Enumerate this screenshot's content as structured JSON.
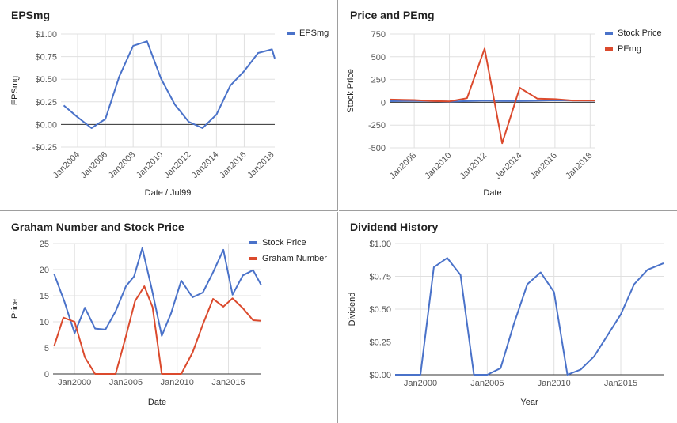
{
  "colors": {
    "blue": "#4a72c9",
    "red": "#db4a2d",
    "grid": "#e0e0e0",
    "axis": "#333333"
  },
  "chart_data": [
    {
      "type": "line",
      "title": "EPSmg",
      "xlabel": "Date / Jul99",
      "ylabel": "EPSmg",
      "ylim": [
        -0.25,
        1.0
      ],
      "xlim": [
        2002.8,
        2018.2
      ],
      "grid": true,
      "legend": "top-right",
      "x_ticks": [
        2004,
        2006,
        2008,
        2010,
        2012,
        2014,
        2016,
        2018
      ],
      "x_tick_labels": [
        "Jan2004",
        "Jan2006",
        "Jan2008",
        "Jan2010",
        "Jan2012",
        "Jan2014",
        "Jan2016",
        "Jan2018"
      ],
      "x_tick_rotation": -45,
      "y_ticks": [
        -0.25,
        0,
        0.25,
        0.5,
        0.75,
        1.0
      ],
      "y_tick_labels": [
        "-$0.25",
        "$0.00",
        "$0.25",
        "$0.50",
        "$0.75",
        "$1.00"
      ],
      "zero_line": true,
      "series": [
        {
          "name": "EPSmg",
          "color": "#4a72c9",
          "x": [
            2003,
            2004,
            2005,
            2006,
            2007,
            2008,
            2009,
            2010,
            2011,
            2012,
            2013,
            2014,
            2015,
            2016,
            2017,
            2018,
            2018.3
          ],
          "values": [
            0.21,
            0.08,
            -0.04,
            0.06,
            0.53,
            0.87,
            0.92,
            0.51,
            0.22,
            0.03,
            -0.04,
            0.11,
            0.43,
            0.59,
            0.79,
            0.83,
            0.73
          ]
        }
      ]
    },
    {
      "type": "line",
      "title": "Price and PEmg",
      "xlabel": "Date",
      "ylabel": "Stock Price",
      "ylim": [
        -500,
        750
      ],
      "xlim": [
        2006.6,
        2018.3
      ],
      "grid": true,
      "legend": "top-right",
      "x_ticks": [
        2008,
        2010,
        2012,
        2014,
        2016,
        2018
      ],
      "x_tick_labels": [
        "Jan2008",
        "Jan2010",
        "Jan2012",
        "Jan2014",
        "Jan2016",
        "Jan2018"
      ],
      "x_tick_rotation": -45,
      "y_ticks": [
        -500,
        -250,
        0,
        250,
        500,
        750
      ],
      "y_tick_labels": [
        "-500",
        "-250",
        "0",
        "250",
        "500",
        "750"
      ],
      "series": [
        {
          "name": "Stock Price",
          "color": "#4a72c9",
          "x": [
            2006.6,
            2008,
            2009,
            2010,
            2011,
            2012,
            2013,
            2014,
            2015,
            2016,
            2017,
            2018.3
          ],
          "values": [
            12,
            16,
            14,
            8,
            13,
            18,
            15,
            14,
            17,
            22,
            20,
            19
          ]
        },
        {
          "name": "PEmg",
          "color": "#db4a2d",
          "x": [
            2006.6,
            2008,
            2009,
            2010,
            2011,
            2012,
            2013,
            2014,
            2015,
            2016,
            2017,
            2018.3
          ],
          "values": [
            30,
            25,
            15,
            10,
            45,
            590,
            -450,
            160,
            40,
            35,
            20,
            20
          ]
        }
      ]
    },
    {
      "type": "line",
      "title": "Graham Number and Stock Price",
      "xlabel": "Date",
      "ylabel": "Price",
      "ylim": [
        0,
        25
      ],
      "xlim": [
        1997.9,
        2018.2
      ],
      "grid": true,
      "legend": "top-right",
      "x_ticks": [
        2000,
        2005,
        2010,
        2015
      ],
      "x_tick_labels": [
        "Jan2000",
        "Jan2005",
        "Jan2010",
        "Jan2015"
      ],
      "x_tick_rotation": 0,
      "y_ticks": [
        0,
        5,
        10,
        15,
        20,
        25
      ],
      "y_tick_labels": [
        "0",
        "5",
        "10",
        "15",
        "20",
        "25"
      ],
      "series": [
        {
          "name": "Stock Price",
          "color": "#4a72c9",
          "x": [
            1998,
            1999,
            2000,
            2001,
            2002,
            2003,
            2004,
            2005,
            2005.8,
            2006.6,
            2007.5,
            2008.5,
            2009.4,
            2010.4,
            2011.5,
            2012.5,
            2013.5,
            2014.5,
            2015.4,
            2016.4,
            2017.4,
            2018.2
          ],
          "values": [
            19.2,
            13.9,
            7.8,
            12.7,
            8.7,
            8.5,
            12,
            16.8,
            18.7,
            24.1,
            16.5,
            7.3,
            11.6,
            17.9,
            14.7,
            15.6,
            19.5,
            23.8,
            15.2,
            18.9,
            19.9,
            17
          ]
        },
        {
          "name": "Graham Number",
          "color": "#db4a2d",
          "x": [
            1998,
            1998.9,
            2000,
            2001,
            2002,
            2003,
            2004,
            2005,
            2005.9,
            2006.8,
            2007.6,
            2008.5,
            2009.4,
            2010.4,
            2011.5,
            2012.5,
            2013.5,
            2014.5,
            2015.4,
            2016.4,
            2017.4,
            2018.2
          ],
          "values": [
            5.3,
            10.8,
            10,
            3.2,
            0,
            0,
            0,
            7.2,
            14,
            16.8,
            12.8,
            0,
            0,
            0,
            4.1,
            9.5,
            14.4,
            12.9,
            14.5,
            12.6,
            10.3,
            10.2
          ]
        }
      ]
    },
    {
      "type": "line",
      "title": "Dividend History",
      "xlabel": "Year",
      "ylabel": "Dividend",
      "ylim": [
        0,
        1.0
      ],
      "xlim": [
        1998.1,
        2018.2
      ],
      "grid": true,
      "legend": "none",
      "x_ticks": [
        2000,
        2005,
        2010,
        2015
      ],
      "x_tick_labels": [
        "Jan2000",
        "Jan2005",
        "Jan2010",
        "Jan2015"
      ],
      "x_tick_rotation": 0,
      "y_ticks": [
        0,
        0.25,
        0.5,
        0.75,
        1.0
      ],
      "y_tick_labels": [
        "$0.00",
        "$0.25",
        "$0.50",
        "$0.75",
        "$1.00"
      ],
      "series": [
        {
          "color": "#4a72c9",
          "x": [
            1998.1,
            2000,
            2001,
            2002,
            2003,
            2004,
            2005,
            2006,
            2007,
            2008,
            2009,
            2010,
            2011,
            2012,
            2013,
            2014,
            2015,
            2016,
            2017,
            2018.2
          ],
          "values": [
            0,
            0,
            0.82,
            0.89,
            0.76,
            0,
            0,
            0.05,
            0.39,
            0.69,
            0.78,
            0.63,
            0,
            0.04,
            0.14,
            0.3,
            0.46,
            0.69,
            0.8,
            0.85
          ]
        }
      ]
    }
  ]
}
